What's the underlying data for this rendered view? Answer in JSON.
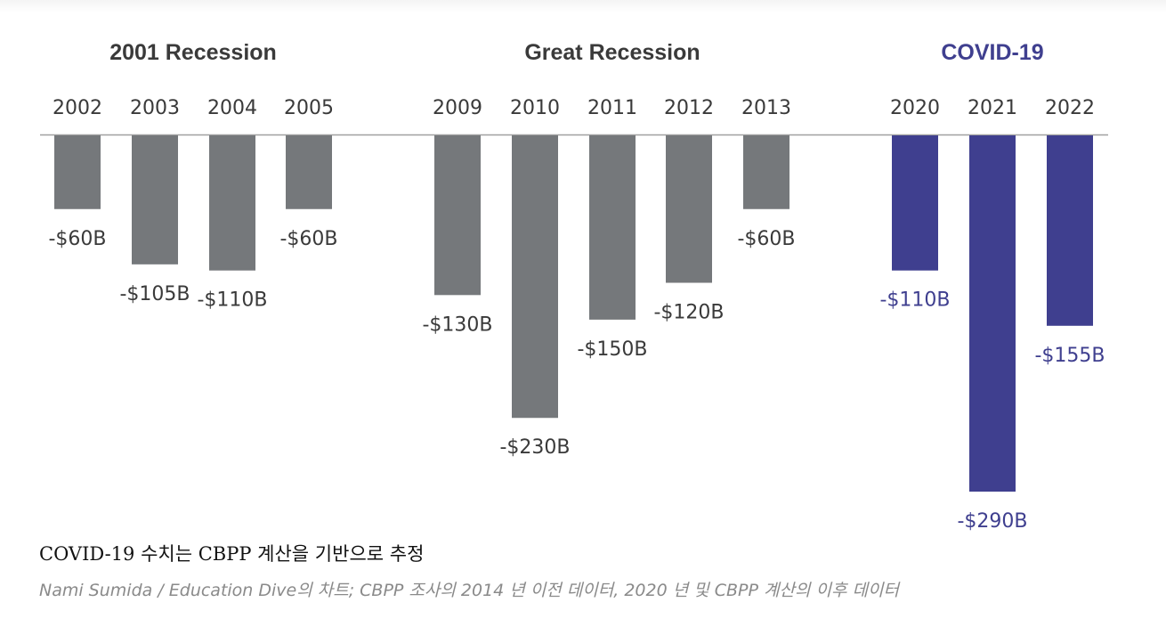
{
  "chart_data": {
    "type": "bar",
    "unit": "B",
    "baseline": 0,
    "colors": {
      "gray": "#75787b",
      "purple": "#3f3f8f",
      "axis": "#a0a0a0",
      "gray_text": "#3a3a3a",
      "title_gray": "#3a3a3a"
    },
    "groups": [
      {
        "title": "2001 Recession",
        "color": "gray",
        "categories": [
          "2002",
          "2003",
          "2004",
          "2005"
        ],
        "values": [
          -60,
          -105,
          -110,
          -60
        ],
        "labels": [
          "-$60B",
          "-$105B",
          "-$110B",
          "-$60B"
        ]
      },
      {
        "title": "Great Recession",
        "color": "gray",
        "categories": [
          "2009",
          "2010",
          "2011",
          "2012",
          "2013"
        ],
        "values": [
          -130,
          -230,
          -150,
          -120,
          -60
        ],
        "labels": [
          "-$130B",
          "-$230B",
          "-$150B",
          "-$120B",
          "-$60B"
        ]
      },
      {
        "title": "COVID-19",
        "color": "purple",
        "categories": [
          "2020",
          "2021",
          "2022"
        ],
        "values": [
          -110,
          -290,
          -155
        ],
        "labels": [
          "-$110B",
          "-$290B",
          "-$155B"
        ]
      }
    ]
  },
  "captions": {
    "note": "COVID-19 수치는 CBPP 계산을 기반으로 추정",
    "source": "Nami Sumida / Education Dive의 차트; CBPP 조사의 2014 년 이전 데이터, 2020 년 및 CBPP 계산의 이후 데이터"
  }
}
